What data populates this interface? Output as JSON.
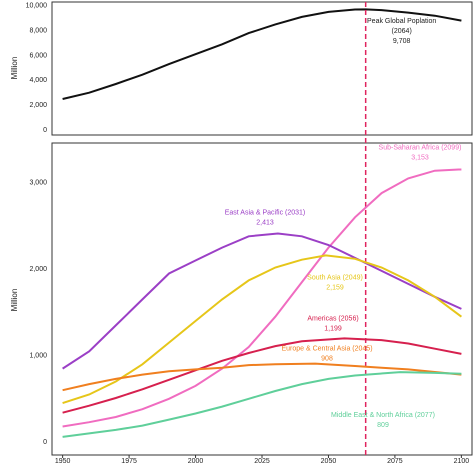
{
  "chart_data": [
    {
      "type": "line",
      "ylabel": "Million",
      "xlim": [
        1946,
        2104
      ],
      "ylim": [
        -400,
        10300
      ],
      "yticks": [
        0,
        {
          "value": 2000,
          "label": "2,000"
        },
        {
          "value": 4000,
          "label": "4,000"
        },
        {
          "value": 6000,
          "label": "6,000"
        },
        {
          "value": 8000,
          "label": "8,000"
        },
        {
          "value": 10000,
          "label": "10,000"
        }
      ],
      "series": [
        {
          "color": "#111111",
          "x": [
            1950,
            1960,
            1970,
            1980,
            1990,
            2000,
            2010,
            2020,
            2030,
            2040,
            2050,
            2060,
            2064,
            2070,
            2080,
            2090,
            2100
          ],
          "values": [
            2500,
            3000,
            3700,
            4450,
            5300,
            6100,
            6900,
            7800,
            8500,
            9100,
            9500,
            9700,
            9708,
            9650,
            9450,
            9200,
            8800
          ]
        }
      ],
      "annotation": {
        "x": 2064,
        "lines": [
          "Peak Global Poplation",
          "(2064)"
        ],
        "value": 9708,
        "label": "9,708",
        "color": "#e0245e"
      }
    },
    {
      "type": "line",
      "ylabel": "Million",
      "xlim": [
        1946,
        2104
      ],
      "ylim": [
        -150,
        3460
      ],
      "xticks": [
        1950,
        1975,
        2000,
        2025,
        2050,
        2075,
        2100
      ],
      "yticks": [
        0,
        {
          "value": 1000,
          "label": "1,000"
        },
        {
          "value": 2000,
          "label": "2,000"
        },
        {
          "value": 3000,
          "label": "3,000"
        }
      ],
      "series": [
        {
          "name": "Sub-Saharan Africa (2099)",
          "color": "#f06cc0",
          "x": [
            1950,
            1960,
            1970,
            1980,
            1990,
            2000,
            2010,
            2020,
            2030,
            2040,
            2050,
            2060,
            2070,
            2080,
            2090,
            2099,
            2100
          ],
          "values": [
            180,
            230,
            290,
            380,
            500,
            650,
            850,
            1100,
            1450,
            1850,
            2250,
            2600,
            2880,
            3050,
            3140,
            3153,
            3153
          ],
          "peak": {
            "value": 3153,
            "label": "3,153"
          }
        },
        {
          "name": "East Asia & Pacific (2031)",
          "color": "#9b3fc6",
          "x": [
            1950,
            1960,
            1970,
            1980,
            1990,
            2000,
            2010,
            2020,
            2031,
            2040,
            2050,
            2060,
            2070,
            2080,
            2090,
            2100
          ],
          "values": [
            850,
            1050,
            1350,
            1650,
            1950,
            2100,
            2250,
            2380,
            2413,
            2380,
            2280,
            2130,
            1980,
            1830,
            1680,
            1540
          ],
          "peak": {
            "value": 2413,
            "label": "2,413"
          }
        },
        {
          "name": "South Asia (2049)",
          "color": "#e6c619",
          "x": [
            1950,
            1960,
            1970,
            1980,
            1990,
            2000,
            2010,
            2020,
            2030,
            2040,
            2049,
            2060,
            2070,
            2080,
            2090,
            2100
          ],
          "values": [
            450,
            550,
            700,
            900,
            1150,
            1400,
            1650,
            1870,
            2020,
            2110,
            2159,
            2120,
            2020,
            1870,
            1680,
            1450
          ],
          "peak": {
            "value": 2159,
            "label": "2,159"
          }
        },
        {
          "name": "Americas (2056)",
          "color": "#d6204e",
          "x": [
            1950,
            1960,
            1970,
            1980,
            1990,
            2000,
            2010,
            2020,
            2030,
            2040,
            2056,
            2070,
            2080,
            2090,
            2100
          ],
          "values": [
            340,
            420,
            510,
            610,
            720,
            830,
            940,
            1030,
            1110,
            1165,
            1199,
            1180,
            1140,
            1080,
            1020
          ],
          "peak": {
            "value": 1199,
            "label": "1,199"
          }
        },
        {
          "name": "Europe & Central Asia (2045)",
          "color": "#f07f1f",
          "x": [
            1950,
            1960,
            1970,
            1980,
            1990,
            2000,
            2010,
            2020,
            2030,
            2045,
            2060,
            2070,
            2080,
            2090,
            2100
          ],
          "values": [
            600,
            670,
            730,
            780,
            820,
            840,
            860,
            890,
            900,
            908,
            880,
            860,
            840,
            810,
            780
          ],
          "peak": {
            "value": 908,
            "label": "908"
          }
        },
        {
          "name": "Middle East & North Africa (2077)",
          "color": "#5fcf9a",
          "x": [
            1950,
            1960,
            1970,
            1980,
            1990,
            2000,
            2010,
            2020,
            2030,
            2040,
            2050,
            2060,
            2077,
            2090,
            2100
          ],
          "values": [
            60,
            100,
            140,
            190,
            260,
            330,
            410,
            500,
            590,
            670,
            730,
            770,
            809,
            800,
            790
          ],
          "peak": {
            "value": 809,
            "label": "809"
          }
        }
      ]
    }
  ]
}
